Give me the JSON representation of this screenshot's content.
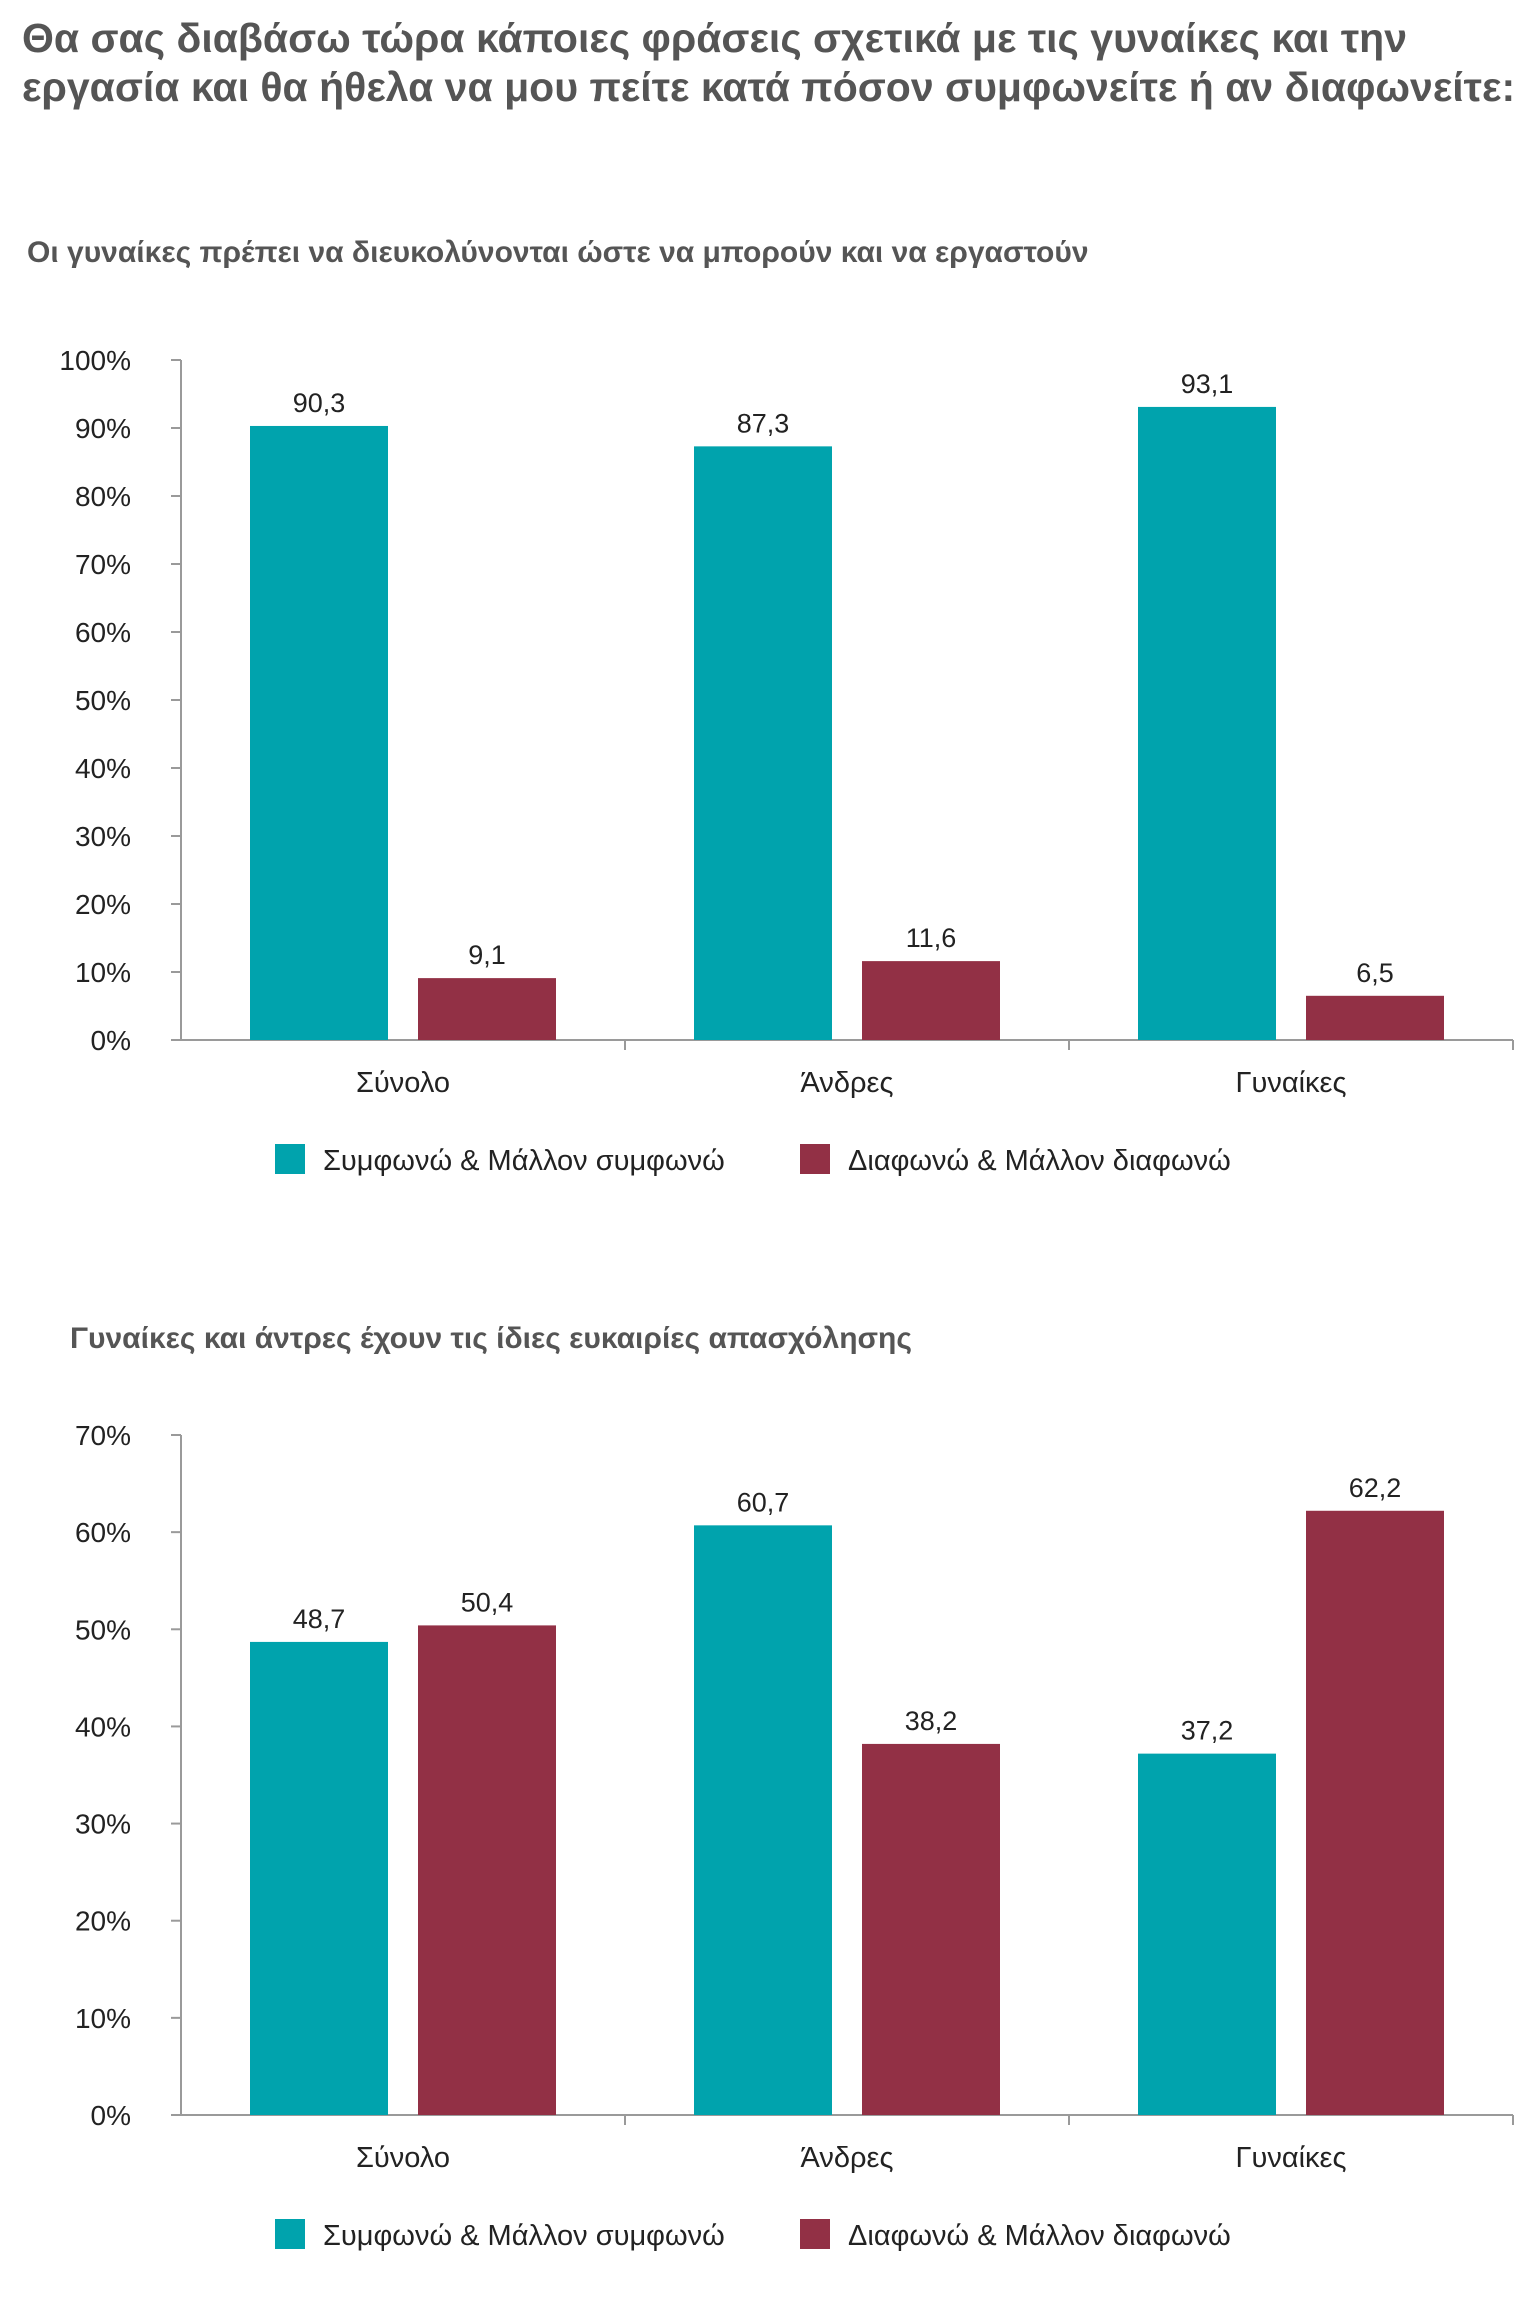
{
  "page": {
    "title": "Θα σας διαβάσω τώρα κάποιες φράσεις σχετικά με τις γυναίκες και την εργασία και θα ήθελα να μου πείτε κατά πόσον συμφωνείτε ή αν διαφωνείτε:"
  },
  "colors": {
    "agree": "#00a3ad",
    "disagree": "#923045",
    "axis": "#9a9a9a",
    "title": "#555555",
    "text": "#222222"
  },
  "chart_data": [
    {
      "type": "bar",
      "title": "Οι γυναίκες πρέπει να διευκολύνονται ώστε να μπορούν και να εργαστούν",
      "categories": [
        "Σύνολο",
        "Άνδρες",
        "Γυναίκες"
      ],
      "series": [
        {
          "name": "Συμφωνώ & Μάλλον συμφωνώ",
          "values": [
            90.3,
            87.3,
            93.1
          ],
          "labels": [
            "90,3",
            "87,3",
            "93,1"
          ]
        },
        {
          "name": "Διαφωνώ & Μάλλον διαφωνώ",
          "values": [
            9.1,
            11.6,
            6.5
          ],
          "labels": [
            "9,1",
            "11,6",
            "6,5"
          ]
        }
      ],
      "ylim": [
        0,
        100
      ],
      "yticks": [
        0,
        10,
        20,
        30,
        40,
        50,
        60,
        70,
        80,
        90,
        100
      ],
      "ytick_labels": [
        "0%",
        "10%",
        "20%",
        "30%",
        "40%",
        "50%",
        "60%",
        "70%",
        "80%",
        "90%",
        "100%"
      ],
      "xlabel": "",
      "ylabel": "",
      "grid": false,
      "legend": "bottom"
    },
    {
      "type": "bar",
      "title": "Γυναίκες και άντρες έχουν τις ίδιες ευκαιρίες απασχόλησης",
      "categories": [
        "Σύνολο",
        "Άνδρες",
        "Γυναίκες"
      ],
      "series": [
        {
          "name": "Συμφωνώ & Μάλλον συμφωνώ",
          "values": [
            48.7,
            60.7,
            37.2
          ],
          "labels": [
            "48,7",
            "60,7",
            "37,2"
          ]
        },
        {
          "name": "Διαφωνώ & Μάλλον διαφωνώ",
          "values": [
            50.4,
            38.2,
            62.2
          ],
          "labels": [
            "50,4",
            "38,2",
            "62,2"
          ]
        }
      ],
      "ylim": [
        0,
        70
      ],
      "yticks": [
        0,
        10,
        20,
        30,
        40,
        50,
        60,
        70
      ],
      "ytick_labels": [
        "0%",
        "10%",
        "20%",
        "30%",
        "40%",
        "50%",
        "60%",
        "70%"
      ],
      "xlabel": "",
      "ylabel": "",
      "grid": false,
      "legend": "bottom"
    }
  ]
}
